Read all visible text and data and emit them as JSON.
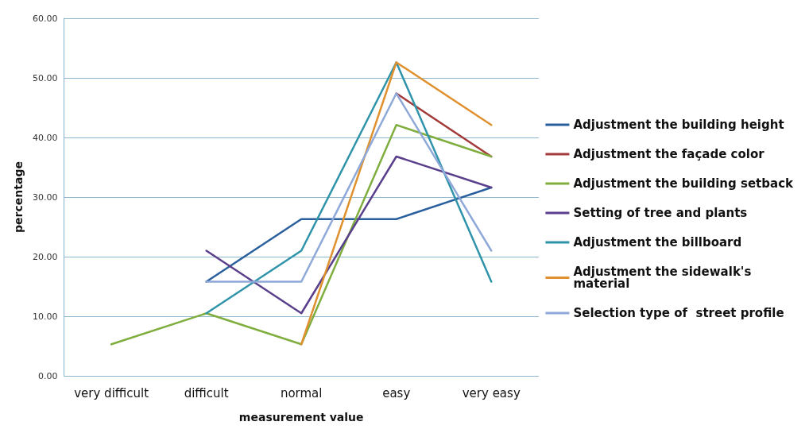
{
  "chart_data": {
    "type": "line",
    "xlabel": "measurement value",
    "ylabel": "percentage",
    "categories": [
      "very difficult",
      "difficult",
      "normal",
      "easy",
      "very easy"
    ],
    "ylim": [
      0,
      60
    ],
    "yticks": [
      {
        "value": 0,
        "label": "0.00"
      },
      {
        "value": 10,
        "label": "10.00"
      },
      {
        "value": 20,
        "label": "20.00"
      },
      {
        "value": 30,
        "label": "30.00"
      },
      {
        "value": 40,
        "label": "40.00"
      },
      {
        "value": 50,
        "label": "50.00"
      },
      {
        "value": 60,
        "label": "60.00"
      }
    ],
    "grid": "y",
    "legend": "right",
    "marker": "none",
    "line_style": "solid",
    "series": [
      {
        "name": "Adjustment the building height",
        "color": "#2a5f9e",
        "values": [
          null,
          15.8,
          26.3,
          26.3,
          31.6
        ]
      },
      {
        "name": "Adjustment the façade color",
        "color": "#a33b3b",
        "values": [
          null,
          null,
          null,
          47.4,
          36.8
        ]
      },
      {
        "name": "Adjustment the building setback",
        "color": "#7fae3f",
        "values": [
          5.3,
          10.5,
          5.3,
          42.1,
          36.8
        ]
      },
      {
        "name": "Setting of tree and plants",
        "color": "#5a3f8c",
        "values": [
          null,
          21,
          10.5,
          36.8,
          31.6
        ]
      },
      {
        "name": "Adjustment the billboard",
        "color": "#2f93aa",
        "values": [
          null,
          10.5,
          21,
          52.6,
          15.8
        ]
      },
      {
        "name": "Adjustment the sidewalk's material",
        "color": "#e0912f",
        "values": [
          null,
          null,
          5.3,
          52.6,
          42.1
        ]
      },
      {
        "name": "Selection type of  street profile",
        "color": "#8ea8d8",
        "values": [
          null,
          15.8,
          15.8,
          47.4,
          21
        ]
      }
    ]
  }
}
